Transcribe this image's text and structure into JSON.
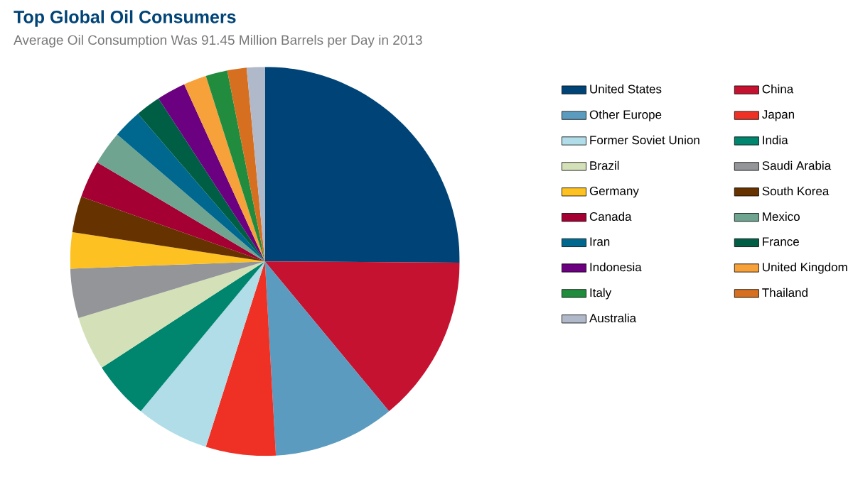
{
  "chart_data": {
    "type": "pie",
    "title": "Top Global Oil Consumers",
    "subtitle": "Average Oil Consumption Was 91.45 Million Barrels per Day in 2013",
    "categories": [
      "United States",
      "China",
      "Other Europe",
      "Japan",
      "Former Soviet Union",
      "India",
      "Brazil",
      "Saudi Arabia",
      "Germany",
      "South Korea",
      "Canada",
      "Mexico",
      "Iran",
      "France",
      "Indonesia",
      "United Kingdom",
      "Italy",
      "Thailand",
      "Australia"
    ],
    "values": [
      25.1,
      13.9,
      10.1,
      5.8,
      6.1,
      4.8,
      4.5,
      4.1,
      3.0,
      3.0,
      3.1,
      2.8,
      2.4,
      2.1,
      2.4,
      1.9,
      1.8,
      1.6,
      1.5
    ],
    "colors": [
      "#004477",
      "#c41230",
      "#5b9bbf",
      "#ee3124",
      "#b0dde8",
      "#00856f",
      "#d4e1b8",
      "#939598",
      "#fdc121",
      "#663300",
      "#a50034",
      "#6fa491",
      "#00688f",
      "#005e45",
      "#6b0080",
      "#f7a13a",
      "#218c3e",
      "#d66f1f",
      "#b0b9c9"
    ],
    "legend": "right"
  }
}
